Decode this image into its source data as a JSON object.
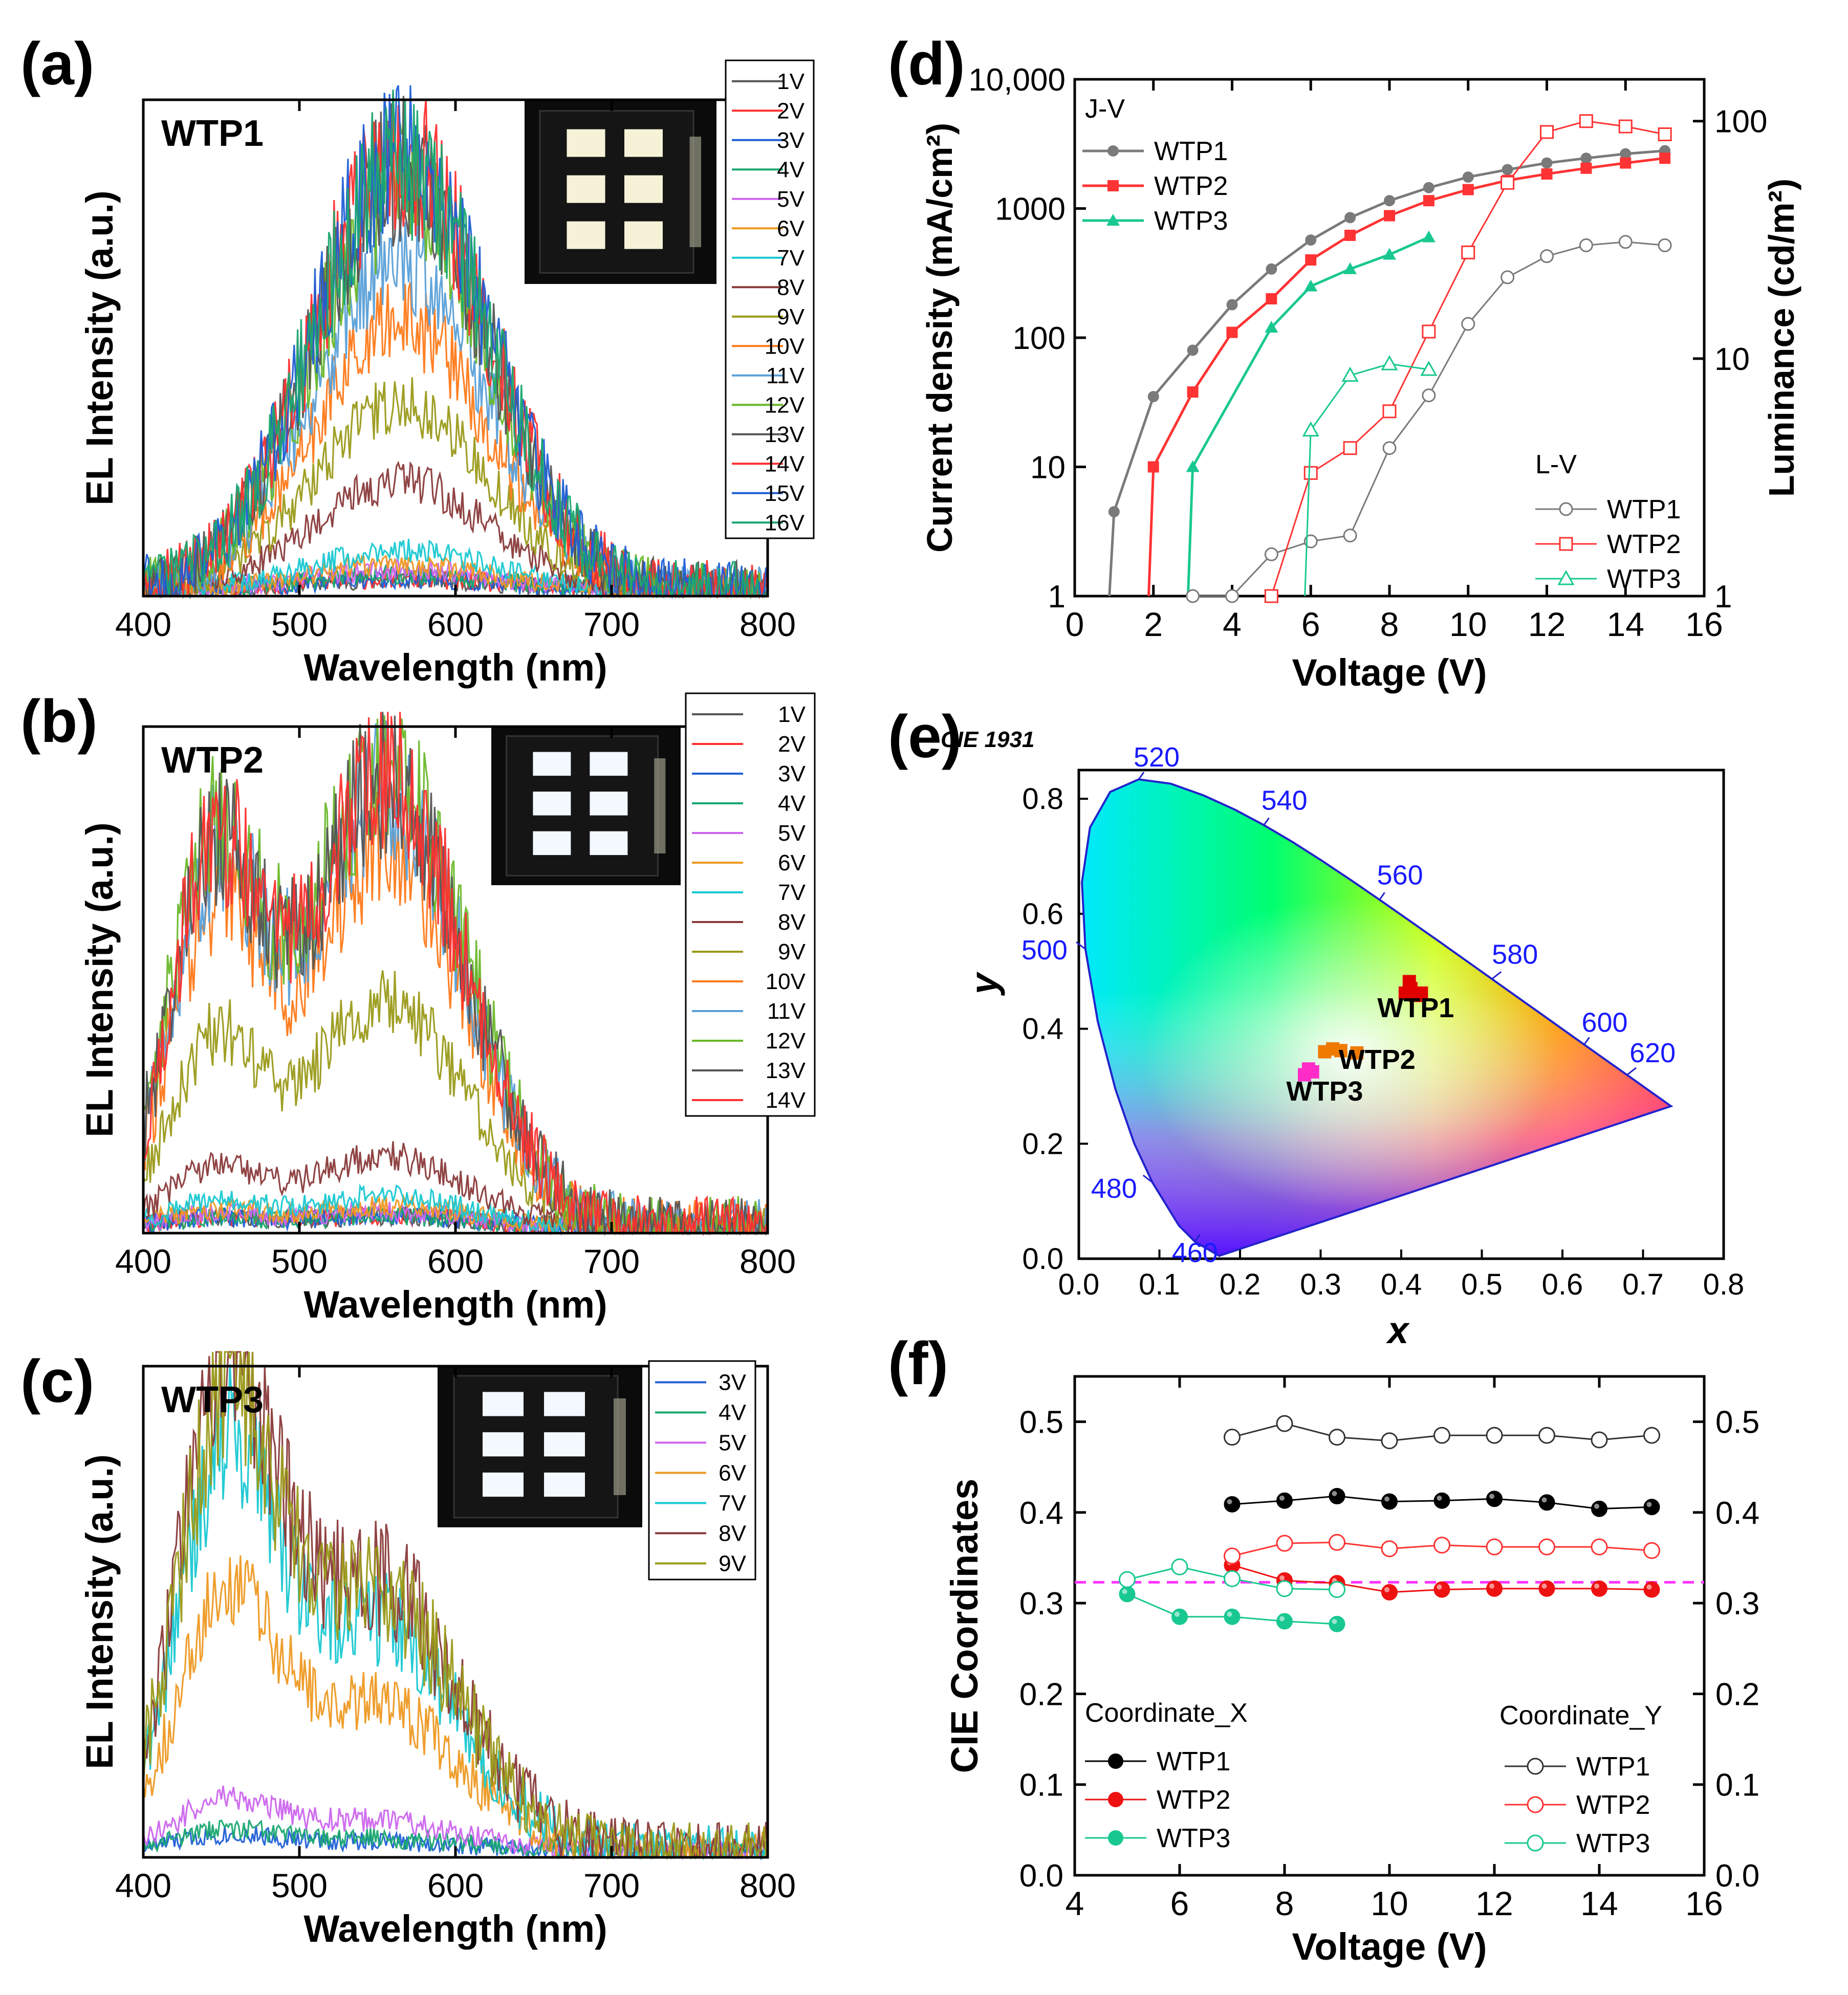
{
  "figure": {
    "panels": {
      "a": {
        "letter": "(a)",
        "sample": "WTP1"
      },
      "b": {
        "letter": "(b)",
        "sample": "WTP2"
      },
      "c": {
        "letter": "(c)",
        "sample": "WTP3"
      },
      "d": {
        "letter": "(d)"
      },
      "e": {
        "letter": "(e)"
      },
      "f": {
        "letter": "(f)"
      }
    }
  },
  "colors": {
    "v1": "#555555",
    "v2": "#ff3030",
    "v3": "#1f5fd6",
    "v4": "#1aa870",
    "v5": "#cc66ee",
    "v6": "#ee9922",
    "v7": "#19c8d2",
    "v8": "#8a3a3a",
    "v9": "#9a9a1a",
    "v10": "#ff7a1a",
    "v11": "#5aa0d8",
    "v12": "#6ab82a",
    "v13": "#555555",
    "v14": "#ff3030",
    "v15": "#1f5fd6",
    "v16": "#1aa870",
    "wtp1": "#7a7a7a",
    "wtp2": "#ff3333",
    "wtp3": "#19c890",
    "cx_wtp1": "#000000",
    "cx_wtp2": "#ee1111",
    "cx_wtp3": "#19c890",
    "ref_line": "#ff33ff"
  },
  "chart_data": [
    {
      "id": "a",
      "type": "line",
      "title": "WTP1",
      "xlabel": "Wavelength (nm)",
      "ylabel": "EL Intensity (a.u.)",
      "xlim": [
        400,
        800
      ],
      "xticks": [
        "400",
        "500",
        "600",
        "700",
        "800"
      ],
      "legend": [
        "1V",
        "2V",
        "3V",
        "4V",
        "5V",
        "6V",
        "7V",
        "8V",
        "9V",
        "10V",
        "11V",
        "12V",
        "13V",
        "14V",
        "15V",
        "16V"
      ],
      "spectrum_peaks_nm": [
        {
          "center": 565,
          "width": 55
        }
      ],
      "series_peak_heights": [
        0.02,
        0.02,
        0.02,
        0.03,
        0.04,
        0.05,
        0.08,
        0.22,
        0.38,
        0.55,
        0.68,
        0.82,
        0.86,
        0.9,
        0.9,
        0.88
      ]
    },
    {
      "id": "b",
      "type": "line",
      "title": "WTP2",
      "xlabel": "Wavelength (nm)",
      "ylabel": "EL Intensity (a.u.)",
      "xlim": [
        400,
        800
      ],
      "xticks": [
        "400",
        "500",
        "600",
        "700",
        "800"
      ],
      "legend": [
        "1V",
        "2V",
        "3V",
        "4V",
        "5V",
        "6V",
        "7V",
        "8V",
        "9V",
        "10V",
        "11V",
        "12V",
        "13V",
        "14V"
      ],
      "spectrum_peaks_nm": [
        {
          "center": 445,
          "width": 28
        },
        {
          "center": 555,
          "width": 50
        }
      ],
      "series_peak_heights": [
        0.02,
        0.02,
        0.02,
        0.02,
        0.03,
        0.04,
        0.06,
        0.14,
        0.45,
        0.75,
        0.88,
        0.93,
        0.9,
        0.9
      ]
    },
    {
      "id": "c",
      "type": "line",
      "title": "WTP3",
      "xlabel": "Wavelength (nm)",
      "ylabel": "EL Intensity (a.u.)",
      "xlim": [
        400,
        800
      ],
      "xticks": [
        "400",
        "500",
        "600",
        "700",
        "800"
      ],
      "legend": [
        "3V",
        "4V",
        "5V",
        "6V",
        "7V",
        "8V",
        "9V"
      ],
      "spectrum_peaks_nm": [
        {
          "center": 452,
          "width": 30
        },
        {
          "center": 545,
          "width": 55
        }
      ],
      "series_peak_heights": [
        0.03,
        0.04,
        0.1,
        0.5,
        0.78,
        0.92,
        0.88
      ]
    },
    {
      "id": "d",
      "type": "line",
      "xlabel": "Voltage (V)",
      "ylabel_left": "Current density (mA/cm²)",
      "ylabel_right": "Luminance (cd/m²)",
      "xlim": [
        0,
        16
      ],
      "xticks": [
        "0",
        "2",
        "4",
        "6",
        "8",
        "10",
        "12",
        "14",
        "16"
      ],
      "ylim_left": [
        1,
        10000
      ],
      "yticks_left": [
        "1",
        "10",
        "100",
        "1000",
        "10,000"
      ],
      "ylim_right": [
        1,
        150
      ],
      "yticks_right": [
        "1",
        "10",
        "100"
      ],
      "legend_jv_title": "J-V",
      "legend_lv_title": "L-V",
      "jv": [
        {
          "name": "WTP1",
          "x": [
            1,
            2,
            3,
            4,
            5,
            6,
            7,
            8,
            9,
            10,
            11,
            12,
            13,
            14,
            15
          ],
          "y": [
            4.5,
            35,
            80,
            180,
            340,
            570,
            850,
            1150,
            1450,
            1750,
            2000,
            2250,
            2450,
            2650,
            2800
          ]
        },
        {
          "name": "WTP2",
          "x": [
            2,
            3,
            4,
            5,
            6,
            7,
            8,
            9,
            10,
            11,
            12,
            13,
            14,
            15
          ],
          "y": [
            10,
            38,
            110,
            200,
            400,
            620,
            880,
            1150,
            1400,
            1650,
            1850,
            2050,
            2250,
            2450
          ]
        },
        {
          "name": "WTP3",
          "x": [
            3,
            5,
            6,
            7,
            8,
            9
          ],
          "y": [
            10,
            120,
            250,
            340,
            440,
            600
          ]
        }
      ],
      "lv": [
        {
          "name": "WTP1",
          "x": [
            3,
            4,
            5,
            6,
            7,
            8,
            9,
            10,
            11,
            12,
            13,
            14,
            15
          ],
          "y": [
            1.0,
            1.0,
            1.5,
            1.7,
            1.8,
            4.2,
            7.0,
            14,
            22,
            27,
            30,
            31,
            30
          ]
        },
        {
          "name": "WTP2",
          "x": [
            5,
            6,
            7,
            8,
            9,
            10,
            11,
            12,
            13,
            14,
            15
          ],
          "y": [
            1.0,
            3.3,
            4.2,
            6.0,
            13,
            28,
            55,
            90,
            100,
            95,
            88
          ]
        },
        {
          "name": "WTP3",
          "x": [
            6,
            7,
            8,
            9
          ],
          "y": [
            5.0,
            8.5,
            9.5,
            9.0
          ]
        }
      ]
    },
    {
      "id": "e",
      "type": "scatter",
      "title": "CIE 1931",
      "xlabel": "x",
      "ylabel": "y",
      "xlim": [
        0,
        0.8
      ],
      "ylim": [
        0,
        0.85
      ],
      "xticks": [
        "0.0",
        "0.1",
        "0.2",
        "0.3",
        "0.4",
        "0.5",
        "0.6",
        "0.7",
        "0.8"
      ],
      "yticks": [
        "0.0",
        "0.2",
        "0.4",
        "0.6",
        "0.8"
      ],
      "wavelength_labels": [
        "460",
        "480",
        "500",
        "520",
        "540",
        "560",
        "580",
        "600",
        "620"
      ],
      "points": [
        {
          "name": "WTP1",
          "x": [
            0.405,
            0.412,
            0.418,
            0.41,
            0.425
          ],
          "y": [
            0.462,
            0.47,
            0.458,
            0.482,
            0.462
          ]
        },
        {
          "name": "WTP2",
          "x": [
            0.305,
            0.315,
            0.325,
            0.345
          ],
          "y": [
            0.36,
            0.365,
            0.362,
            0.358
          ]
        },
        {
          "name": "WTP3",
          "x": [
            0.28,
            0.285,
            0.29
          ],
          "y": [
            0.32,
            0.33,
            0.325
          ]
        }
      ]
    },
    {
      "id": "f",
      "type": "line",
      "xlabel": "Voltage (V)",
      "ylabel": "CIE Coordinates",
      "xlim": [
        4,
        16
      ],
      "ylim": [
        0,
        0.55
      ],
      "xticks": [
        "4",
        "6",
        "8",
        "10",
        "12",
        "14",
        "16"
      ],
      "yticks": [
        "0.0",
        "0.1",
        "0.2",
        "0.3",
        "0.4",
        "0.5"
      ],
      "legend_x_title": "Coordinate_X",
      "legend_y_title": "Coordinate_Y",
      "reference_y": 0.323,
      "coord_x": [
        {
          "name": "WTP1",
          "x": [
            7,
            8,
            9,
            10,
            11,
            12,
            13,
            14,
            15
          ],
          "y": [
            0.409,
            0.413,
            0.418,
            0.412,
            0.413,
            0.415,
            0.411,
            0.404,
            0.406
          ]
        },
        {
          "name": "WTP2",
          "x": [
            7,
            8,
            9,
            10,
            11,
            12,
            13,
            14,
            15
          ],
          "y": [
            0.342,
            0.325,
            0.322,
            0.312,
            0.315,
            0.316,
            0.316,
            0.316,
            0.315
          ]
        },
        {
          "name": "WTP3",
          "x": [
            5,
            6,
            7,
            8,
            9
          ],
          "y": [
            0.31,
            0.285,
            0.285,
            0.28,
            0.277
          ]
        }
      ],
      "coord_y": [
        {
          "name": "WTP1",
          "x": [
            7,
            8,
            9,
            10,
            11,
            12,
            13,
            14,
            15
          ],
          "y": [
            0.483,
            0.498,
            0.483,
            0.479,
            0.485,
            0.485,
            0.485,
            0.48,
            0.485
          ]
        },
        {
          "name": "WTP2",
          "x": [
            7,
            8,
            9,
            10,
            11,
            12,
            13,
            14,
            15
          ],
          "y": [
            0.352,
            0.366,
            0.367,
            0.36,
            0.364,
            0.362,
            0.362,
            0.362,
            0.358
          ]
        },
        {
          "name": "WTP3",
          "x": [
            5,
            6,
            7,
            8,
            9
          ],
          "y": [
            0.326,
            0.34,
            0.327,
            0.316,
            0.315
          ]
        }
      ]
    }
  ]
}
